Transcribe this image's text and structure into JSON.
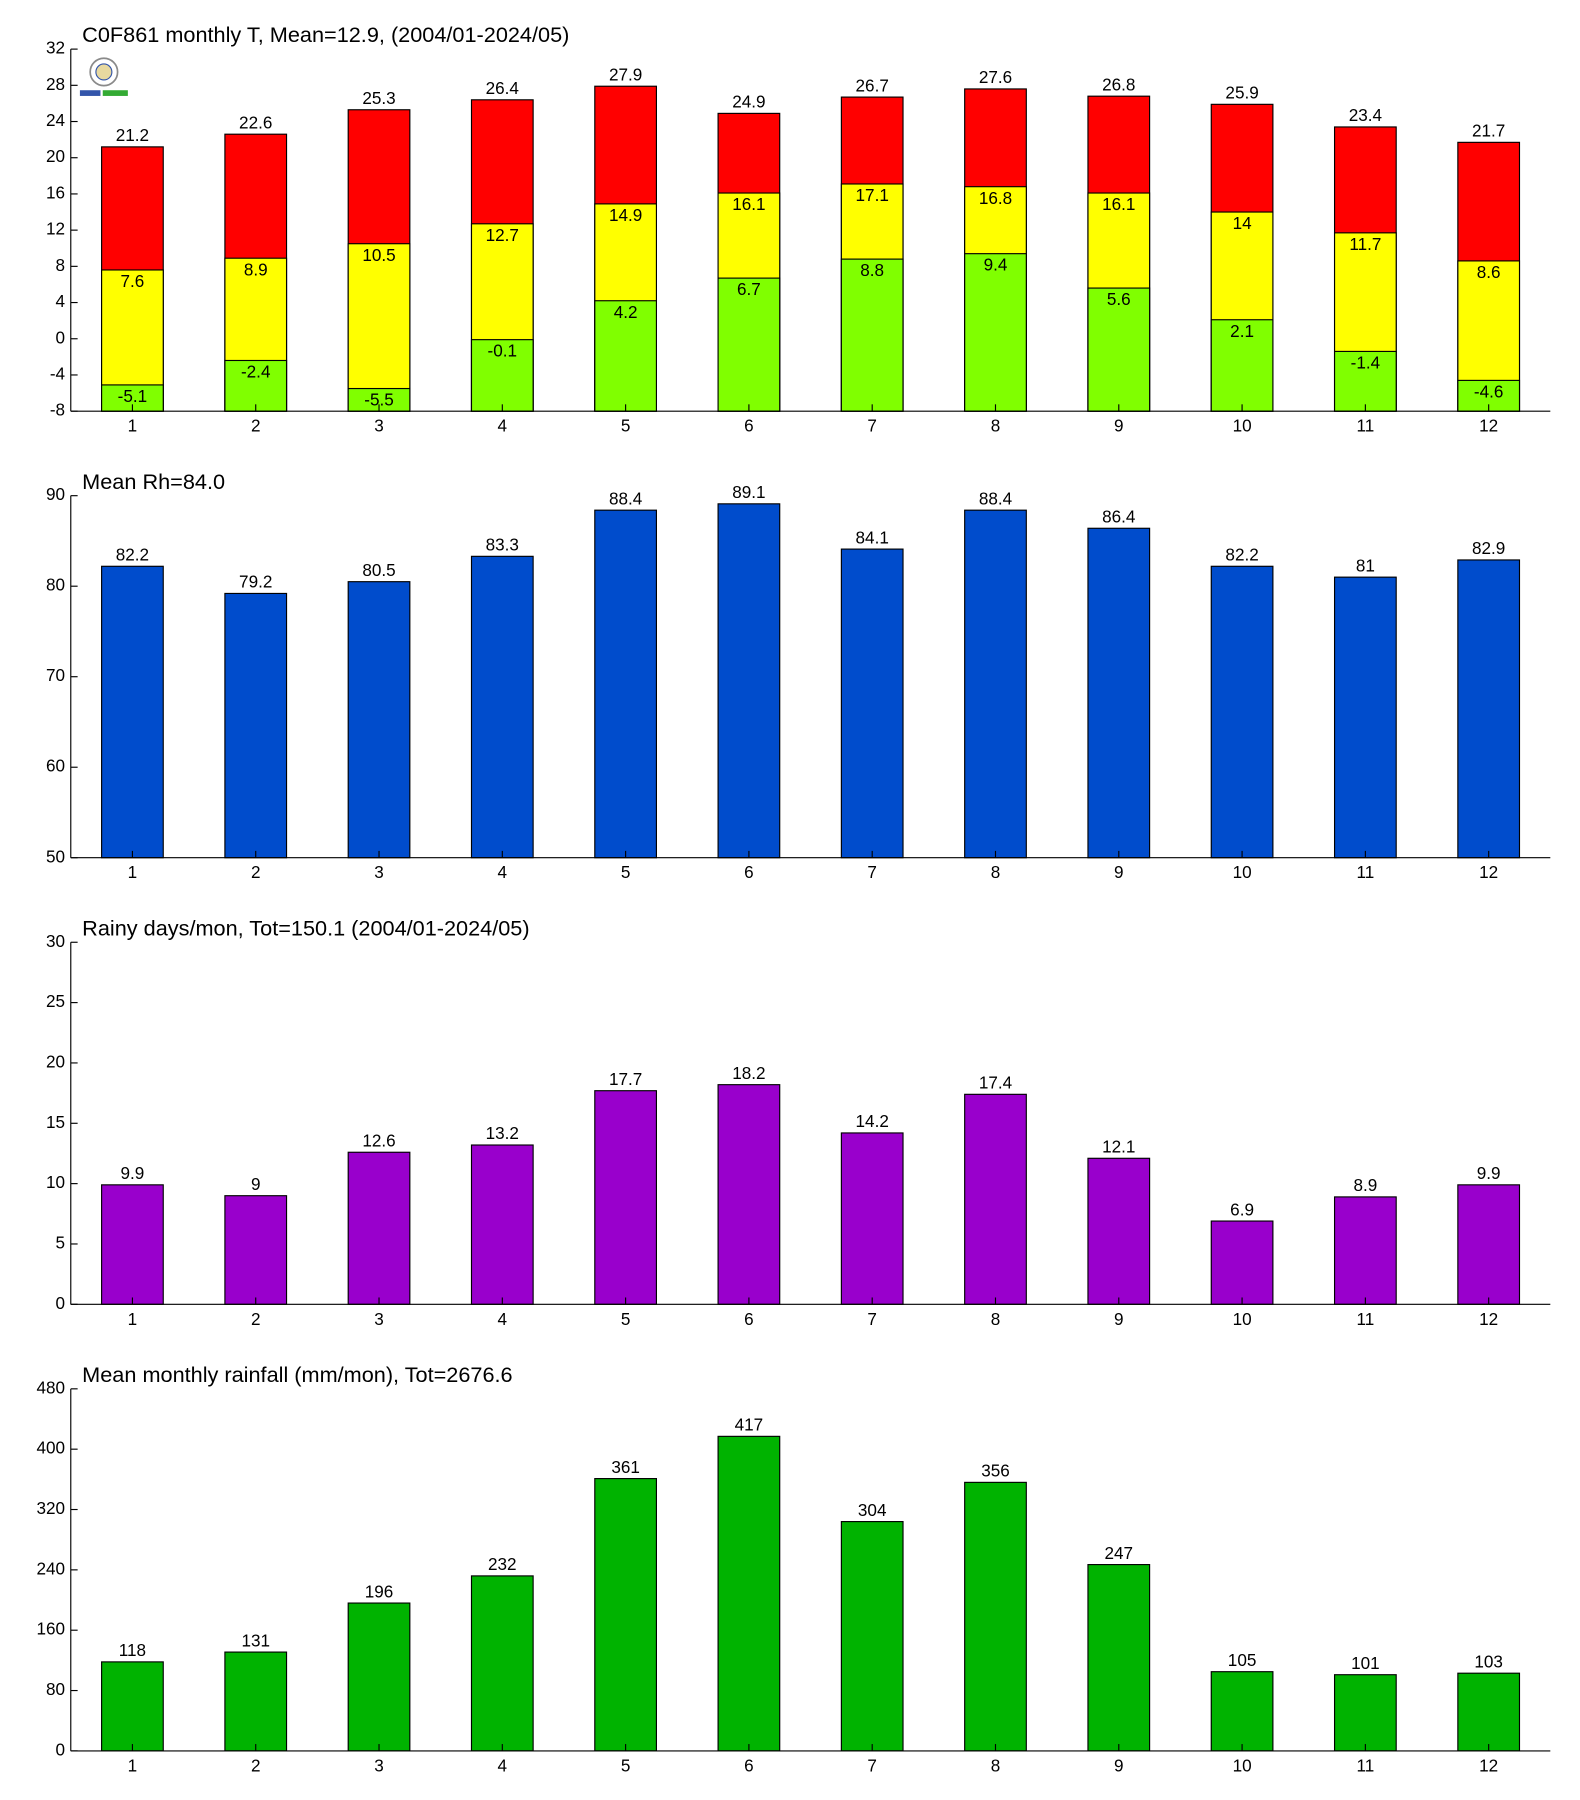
{
  "chart_data": [
    {
      "type": "bar",
      "title": "C0F861 monthly T, Mean=12.9, (2004/01-2024/05)",
      "categories": [
        "1",
        "2",
        "3",
        "4",
        "5",
        "6",
        "7",
        "8",
        "9",
        "10",
        "11",
        "12"
      ],
      "series": [
        {
          "color": "#ff0000",
          "label_position": "above",
          "values": [
            21.2,
            22.6,
            25.3,
            26.4,
            27.9,
            24.9,
            26.7,
            27.6,
            26.8,
            25.9,
            23.4,
            21.7
          ]
        },
        {
          "color": "#ffff00",
          "label_position": "inside",
          "values": [
            7.6,
            8.9,
            10.5,
            12.7,
            14.9,
            16.1,
            17.1,
            16.8,
            16.1,
            14,
            11.7,
            8.6
          ]
        },
        {
          "color": "#80ff00",
          "label_position": "inside",
          "values": [
            -5.1,
            -2.4,
            -5.5,
            -0.1,
            4.2,
            6.7,
            8.8,
            9.4,
            5.6,
            2.1,
            -1.4,
            -4.6
          ]
        }
      ],
      "ylim": [
        -8,
        32
      ],
      "yticks": [
        -8,
        -4,
        0,
        4,
        8,
        12,
        16,
        20,
        24,
        28,
        32
      ]
    },
    {
      "type": "bar",
      "title": "Mean Rh=84.0",
      "categories": [
        "1",
        "2",
        "3",
        "4",
        "5",
        "6",
        "7",
        "8",
        "9",
        "10",
        "11",
        "12"
      ],
      "series": [
        {
          "color": "#004ccc",
          "label_position": "above",
          "values": [
            82.2,
            79.2,
            80.5,
            83.3,
            88.4,
            89.1,
            84.1,
            88.4,
            86.4,
            82.2,
            81,
            82.9
          ]
        }
      ],
      "ylim": [
        50,
        90
      ],
      "yticks": [
        50,
        60,
        70,
        80,
        90
      ]
    },
    {
      "type": "bar",
      "title": "Rainy days/mon, Tot=150.1 (2004/01-2024/05)",
      "categories": [
        "1",
        "2",
        "3",
        "4",
        "5",
        "6",
        "7",
        "8",
        "9",
        "10",
        "11",
        "12"
      ],
      "series": [
        {
          "color": "#9900cc",
          "label_position": "above",
          "values": [
            9.9,
            9,
            12.6,
            13.2,
            17.7,
            18.2,
            14.2,
            17.4,
            12.1,
            6.9,
            8.9,
            9.9
          ]
        }
      ],
      "ylim": [
        0,
        30
      ],
      "yticks": [
        0,
        5,
        10,
        15,
        20,
        25,
        30
      ]
    },
    {
      "type": "bar",
      "title": "Mean monthly rainfall (mm/mon), Tot=2676.6",
      "categories": [
        "1",
        "2",
        "3",
        "4",
        "5",
        "6",
        "7",
        "8",
        "9",
        "10",
        "11",
        "12"
      ],
      "series": [
        {
          "color": "#00b300",
          "label_position": "above",
          "values": [
            118,
            131,
            196,
            232,
            361,
            417,
            304,
            356,
            247,
            105,
            101,
            103
          ]
        }
      ],
      "ylim": [
        0,
        480
      ],
      "yticks": [
        0,
        80,
        160,
        240,
        320,
        400,
        480
      ]
    }
  ]
}
